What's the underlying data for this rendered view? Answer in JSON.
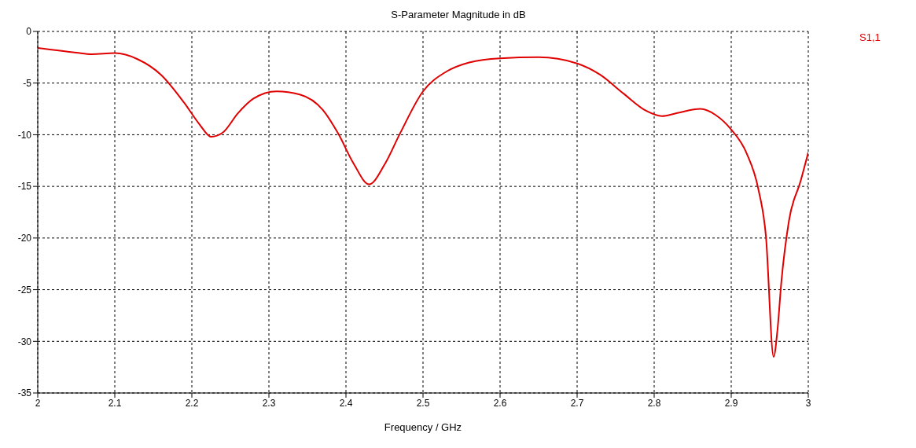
{
  "chart_data": {
    "type": "line",
    "title": "S-Parameter Magnitude in dB",
    "xlabel": "Frequency / GHz",
    "x": [
      2.0,
      2.05,
      2.07,
      2.1,
      2.13,
      2.16,
      2.19,
      2.21,
      2.225,
      2.24,
      2.26,
      2.28,
      2.31,
      2.34,
      2.37,
      2.39,
      2.41,
      2.43,
      2.45,
      2.47,
      2.5,
      2.53,
      2.56,
      2.6,
      2.65,
      2.7,
      2.73,
      2.76,
      2.79,
      2.81,
      2.83,
      2.86,
      2.88,
      2.9,
      2.92,
      2.935,
      2.945,
      2.955,
      2.96,
      2.965,
      2.975,
      2.99,
      3.0
    ],
    "series": [
      {
        "name": "S1,1",
        "color": "#e00000",
        "values": [
          -1.6,
          -2.05,
          -2.2,
          -2.1,
          -2.7,
          -4.2,
          -6.9,
          -9.0,
          -10.2,
          -9.8,
          -7.9,
          -6.5,
          -5.8,
          -6.1,
          -7.6,
          -9.9,
          -12.8,
          -14.8,
          -12.9,
          -9.9,
          -5.8,
          -3.9,
          -3.0,
          -2.6,
          -2.5,
          -3.1,
          -4.2,
          -6.0,
          -7.7,
          -8.2,
          -7.9,
          -7.5,
          -8.1,
          -9.5,
          -11.8,
          -15.2,
          -19.8,
          -31.5,
          -28.9,
          -24.3,
          -18.3,
          -14.5,
          -11.7
        ]
      }
    ],
    "xlim": [
      2,
      3
    ],
    "xticks": [
      2,
      2.1,
      2.2,
      2.3,
      2.4,
      2.5,
      2.6,
      2.7,
      2.8,
      2.9,
      3
    ],
    "ylim": [
      -35,
      0
    ],
    "yticks": [
      -35,
      -30,
      -25,
      -20,
      -15,
      -10,
      -5,
      0
    ],
    "grid": true,
    "legend": "top right",
    "marker": "none",
    "line_style": "solid"
  }
}
